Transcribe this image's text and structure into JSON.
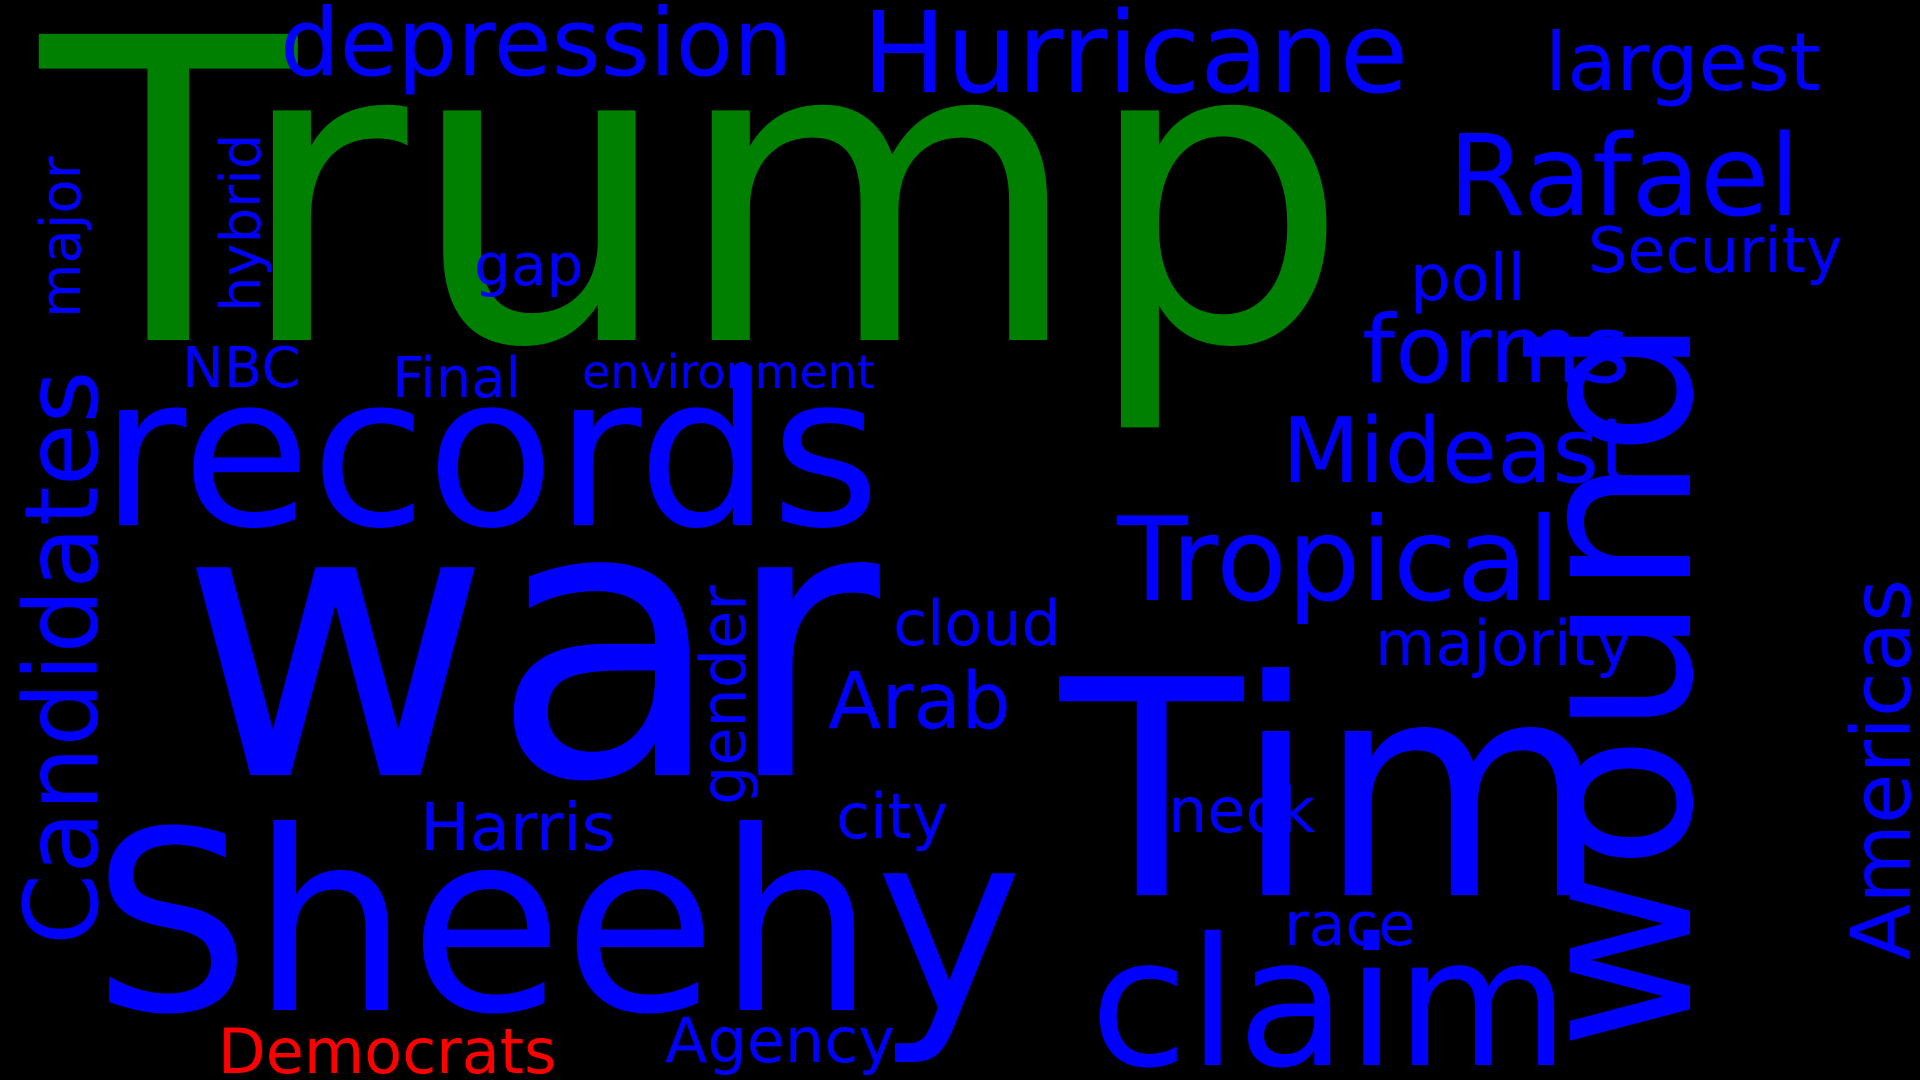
{
  "colors": {
    "background": "#000000",
    "primary": "#0000ff",
    "highlight": "#008000",
    "accent": "#ff0000"
  },
  "words": {
    "trump": "Trump",
    "war": "war",
    "sheehy": "Sheehy",
    "tim": "Tim",
    "records": "records",
    "wound": "wound",
    "claim": "claim",
    "hurricane": "Hurricane",
    "rafael": "Rafael",
    "tropical": "Tropical",
    "candidates": "Candidates",
    "depression": "depression",
    "largest": "largest",
    "forms": "forms",
    "mideast": "Mideast",
    "americas": "Americas",
    "security": "Security",
    "poll": "poll",
    "majority": "majority",
    "arab": "Arab",
    "cloud": "cloud",
    "gender": "gender",
    "harris": "Harris",
    "city": "city",
    "neck": "neck",
    "race": "race",
    "agency": "Agency",
    "democrats": "Democrats",
    "major": "major",
    "hybrid": "hybrid",
    "gap": "gap",
    "nbc": "NBC",
    "final": "Final",
    "environment": "environment"
  }
}
